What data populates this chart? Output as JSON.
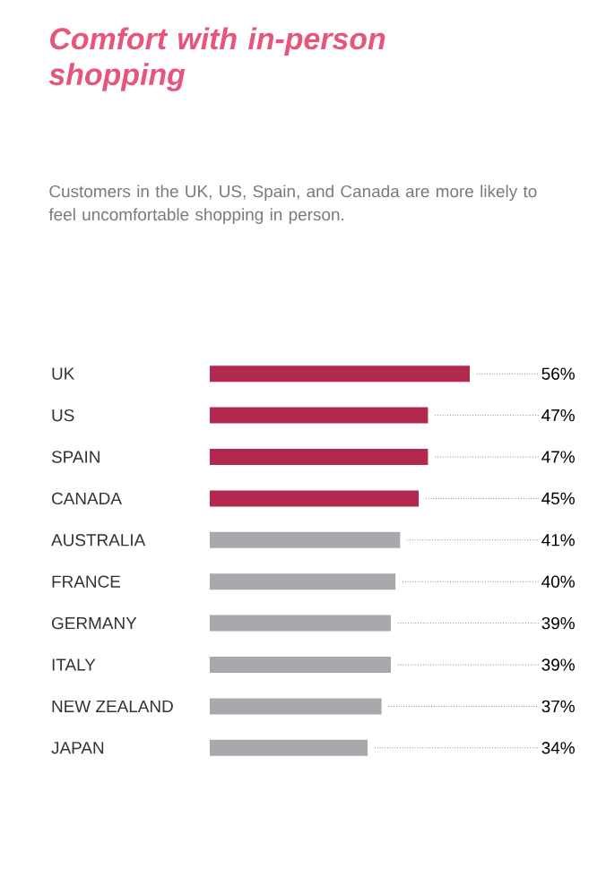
{
  "chart_data": {
    "type": "bar",
    "orientation": "horizontal",
    "title": "Comfort with in-person shopping",
    "subtitle": "Customers in the UK, US, Spain, and Canada are more likely to feel uncomfortable shopping in person.",
    "categories": [
      "UK",
      "US",
      "SPAIN",
      "CANADA",
      "AUSTRALIA",
      "FRANCE",
      "GERMANY",
      "ITALY",
      "NEW ZEALAND",
      "JAPAN"
    ],
    "values": [
      56,
      47,
      47,
      45,
      41,
      40,
      39,
      39,
      37,
      34
    ],
    "value_labels": [
      "56%",
      "47%",
      "47%",
      "45%",
      "41%",
      "40%",
      "39%",
      "39%",
      "37%",
      "34%"
    ],
    "colors": [
      "#b3284f",
      "#b3284f",
      "#b3284f",
      "#b3284f",
      "#a9a9ad",
      "#a9a9ad",
      "#a9a9ad",
      "#a9a9ad",
      "#a9a9ad",
      "#a9a9ad"
    ]
  }
}
